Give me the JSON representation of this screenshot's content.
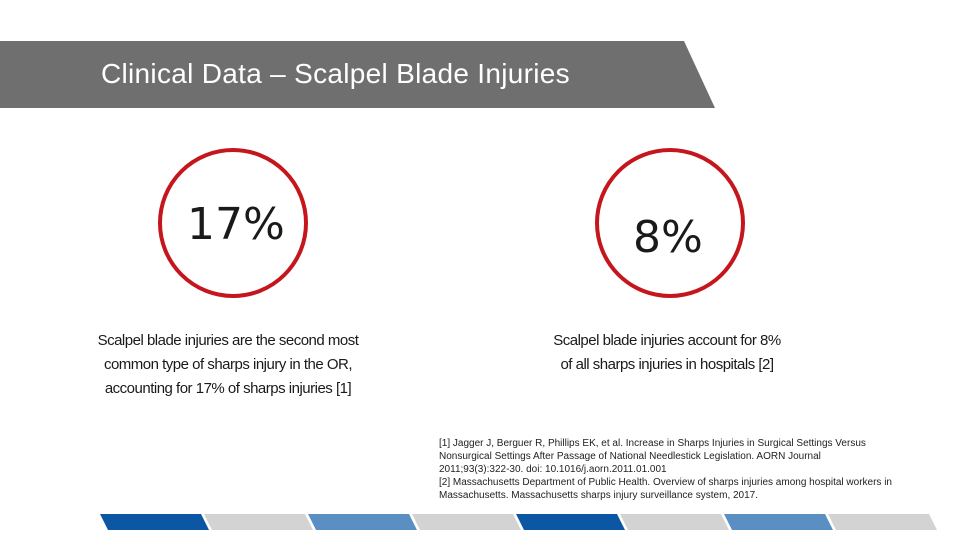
{
  "slide": {
    "title": "Clinical Data – Scalpel Blade Injuries"
  },
  "stats": [
    {
      "value": "17%",
      "description_lines": [
        "Scalpel blade injuries are the second most",
        "common type of sharps injury in the OR,",
        "accounting for 17% of sharps injuries [1]"
      ]
    },
    {
      "value": "8%",
      "description_lines": [
        "Scalpel blade injuries account for 8%",
        "of all sharps injuries in hospitals [2]"
      ]
    }
  ],
  "references": [
    " [1] Jagger J, Berguer R, Phillips EK, et al. Increase in Sharps Injuries in Surgical Settings Versus",
    "Nonsurgical Settings After Passage of National Needlestick Legislation. AORN Journal",
    "2011;93(3):322-30. doi: 10.1016/j.aorn.2011.01.001",
    "[2] Massachusetts Department of Public Health. Overview of sharps injuries among hospital workers in",
    "Massachusetts. Massachusetts sharps injury surveillance system, 2017."
  ],
  "colors": {
    "banner": "#6f6f6f",
    "circle_border": "#c4161c",
    "bar_dark_blue": "#0b57a4",
    "bar_light_gray": "#d3d3d3",
    "bar_light_blue": "#5b8fc4"
  },
  "bottom_bar": [
    "dark-blue",
    "light-gray",
    "light-blue",
    "light-gray",
    "dark-blue",
    "light-gray",
    "light-blue",
    "light-gray"
  ]
}
